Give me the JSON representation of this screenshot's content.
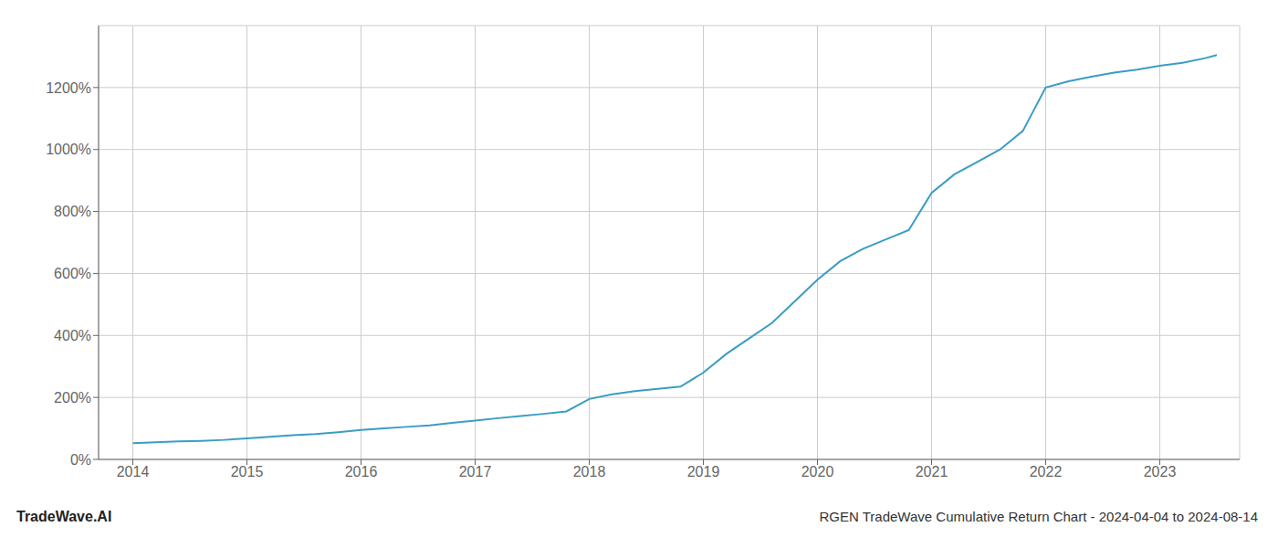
{
  "chart_data": {
    "type": "line",
    "title": "RGEN TradeWave Cumulative Return Chart - 2024-04-04 to 2024-08-14",
    "annotations": [
      "TradeWave.AI"
    ],
    "x": [
      2014.0,
      2014.2,
      2014.4,
      2014.6,
      2014.8,
      2015.0,
      2015.2,
      2015.4,
      2015.6,
      2015.8,
      2016.0,
      2016.2,
      2016.4,
      2016.6,
      2016.8,
      2017.0,
      2017.2,
      2017.4,
      2017.6,
      2017.8,
      2018.0,
      2018.2,
      2018.4,
      2018.6,
      2018.8,
      2019.0,
      2019.2,
      2019.4,
      2019.6,
      2019.8,
      2020.0,
      2020.2,
      2020.4,
      2020.6,
      2020.8,
      2021.0,
      2021.2,
      2021.4,
      2021.6,
      2021.8,
      2022.0,
      2022.2,
      2022.4,
      2022.6,
      2022.8,
      2023.0,
      2023.2,
      2023.4,
      2023.5
    ],
    "values": [
      52,
      55,
      58,
      60,
      63,
      68,
      73,
      78,
      82,
      88,
      95,
      100,
      105,
      110,
      118,
      125,
      133,
      140,
      147,
      155,
      195,
      210,
      220,
      228,
      235,
      280,
      340,
      390,
      440,
      510,
      580,
      640,
      680,
      710,
      740,
      860,
      920,
      960,
      1000,
      1060,
      1200,
      1220,
      1235,
      1248,
      1258,
      1270,
      1280,
      1295,
      1305
    ],
    "color": "#3a9dc4",
    "xlim": [
      2013.7,
      2023.7
    ],
    "ylim": [
      0,
      1400
    ],
    "xticks": [
      2014,
      2015,
      2016,
      2017,
      2018,
      2019,
      2020,
      2021,
      2022,
      2023
    ],
    "yticks": [
      {
        "value": 0,
        "label": "0%"
      },
      {
        "value": 200,
        "label": "200%"
      },
      {
        "value": 400,
        "label": "400%"
      },
      {
        "value": 600,
        "label": "600%"
      },
      {
        "value": 800,
        "label": "800%"
      },
      {
        "value": 1000,
        "label": "1000%"
      },
      {
        "value": 1200,
        "label": "1200%"
      }
    ],
    "grid": true
  }
}
